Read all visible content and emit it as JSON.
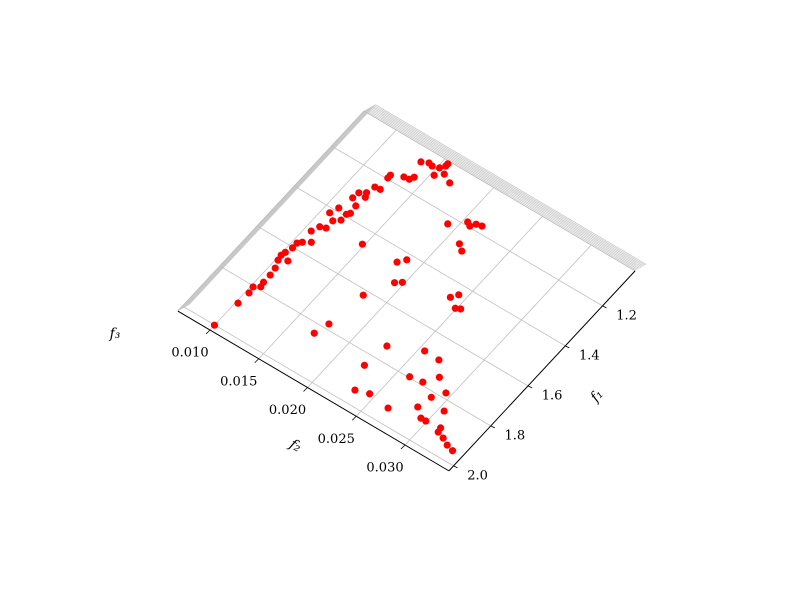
{
  "chart_data": {
    "type": "scatter",
    "xlabel": "f₂",
    "ylabel": "f₁",
    "zlabel": "f₃",
    "color": "#ff0000",
    "grid": true,
    "xlim": [
      0.0067,
      0.0345
    ],
    "ylim": [
      1.025,
      2.025
    ],
    "xticks": [
      {
        "value": 0.01,
        "label": "0.010"
      },
      {
        "value": 0.015,
        "label": "0.015"
      },
      {
        "value": 0.02,
        "label": "0.020"
      },
      {
        "value": 0.025,
        "label": "0.025"
      },
      {
        "value": 0.03,
        "label": "0.030"
      }
    ],
    "yticks": [
      1.2,
      1.4,
      1.6,
      1.8,
      {
        "value": 2.0,
        "label": "2.0"
      }
    ],
    "x": [
      0.01,
      0.0102,
      0.0103,
      0.0102,
      0.0107,
      0.0106,
      0.0106,
      0.0105,
      0.0102,
      0.0101,
      0.0109,
      0.0102,
      0.0104,
      0.0104,
      0.0107,
      0.0113,
      0.0106,
      0.0109,
      0.0114,
      0.0107,
      0.0114,
      0.011,
      0.0119,
      0.0119,
      0.0121,
      0.0113,
      0.012,
      0.0114,
      0.0121,
      0.0119,
      0.0121,
      0.0126,
      0.0124,
      0.0124,
      0.0134,
      0.0139,
      0.0141,
      0.0136,
      0.0142,
      0.0146,
      0.0153,
      0.0152,
      0.0159,
      0.0155,
      0.0155,
      0.0168,
      0.0192,
      0.0204,
      0.0208,
      0.0211,
      0.0216,
      0.0212,
      0.0218,
      0.0148,
      0.0182,
      0.0187,
      0.0198,
      0.0193,
      0.018,
      0.0239,
      0.0243,
      0.0249,
      0.0253,
      0.0175,
      0.0171,
      0.0227,
      0.0255,
      0.027,
      0.0224,
      0.0261,
      0.0273,
      0.0281,
      0.0233,
      0.0245,
      0.0295,
      0.0288,
      0.0266,
      0.0285,
      0.0305,
      0.0294,
      0.0299,
      0.0313,
      0.0314,
      0.0321,
      0.0328,
      0.0335
    ],
    "values": [
      2.001,
      1.885,
      1.831,
      1.804,
      1.789,
      1.769,
      1.733,
      1.701,
      1.67,
      1.648,
      1.654,
      1.631,
      1.603,
      1.579,
      1.566,
      1.549,
      1.513,
      1.483,
      1.475,
      1.419,
      1.439,
      1.386,
      1.421,
      1.392,
      1.381,
      1.327,
      1.347,
      1.299,
      1.301,
      1.284,
      1.25,
      1.247,
      1.196,
      1.182,
      1.162,
      1.159,
      1.143,
      1.081,
      1.069,
      1.073,
      1.099,
      1.065,
      1.076,
      1.047,
      1.036,
      1.094,
      1.23,
      1.186,
      1.195,
      1.177,
      1.172,
      1.272,
      1.291,
      1.458,
      1.45,
      1.424,
      1.505,
      1.521,
      1.621,
      1.462,
      1.438,
      1.488,
      1.48,
      1.779,
      1.837,
      1.74,
      1.684,
      1.686,
      1.845,
      1.796,
      1.788,
      1.741,
      1.943,
      1.927,
      1.779,
      1.821,
      1.938,
      1.878,
      1.841,
      1.908,
      1.908,
      1.902,
      1.92,
      1.93,
      1.945,
      1.953
    ]
  }
}
